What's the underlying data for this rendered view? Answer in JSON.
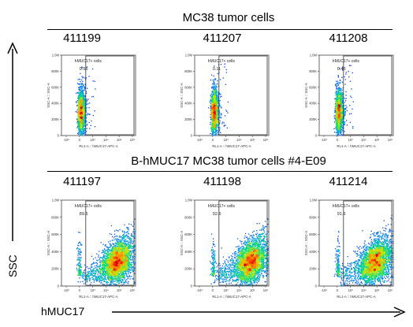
{
  "figure": {
    "y_axis_label": "SSC",
    "x_axis_label": "hMUC17"
  },
  "groups": [
    {
      "title": "MC38 tumor cells",
      "samples": [
        "411199",
        "411207",
        "411208"
      ]
    },
    {
      "title": "B-hMUC17 MC38 tumor cells #4-E09",
      "samples": [
        "411197",
        "411198",
        "411214"
      ]
    }
  ],
  "chart_data": [
    {
      "type": "scatter",
      "title": "411199",
      "group": "MC38 tumor cells",
      "xlabel": "RL1-A :: hMUC17-APC-A",
      "ylabel": "SSC-A :: SSC-A",
      "gate_label": "hMUC17+ cells",
      "gate_value": "0.56",
      "ylim": [
        0,
        1000000
      ],
      "yticks": [
        "0",
        "200K",
        "400K",
        "600K",
        "800K",
        "1.0M"
      ],
      "x_scale": "biexponential",
      "xticks": [
        "-10³",
        "0",
        "10³",
        "10⁴",
        "10⁵",
        "10⁶"
      ],
      "population": "negative",
      "color_scale": "density (blue-green-yellow-red)"
    },
    {
      "type": "scatter",
      "title": "411207",
      "group": "MC38 tumor cells",
      "xlabel": "RL1-A :: hMUC17-APC-A",
      "ylabel": "SSC-A :: SSC-A",
      "gate_label": "hMUC17+ cells",
      "gate_value": "0.11",
      "ylim": [
        0,
        1000000
      ],
      "yticks": [
        "0",
        "200K",
        "400K",
        "600K",
        "800K",
        "1.0M"
      ],
      "x_scale": "biexponential",
      "xticks": [
        "-10³",
        "0",
        "10³",
        "10⁴",
        "10⁵",
        "10⁶"
      ],
      "population": "negative",
      "color_scale": "density (blue-green-yellow-red)"
    },
    {
      "type": "scatter",
      "title": "411208",
      "group": "MC38 tumor cells",
      "xlabel": "RL1-A :: hMUC17-APC-A",
      "ylabel": "SSC-A :: SSC-A",
      "gate_label": "hMUC17+ cells",
      "gate_value": "0.43",
      "ylim": [
        0,
        1000000
      ],
      "yticks": [
        "0",
        "200K",
        "400K",
        "600K",
        "800K",
        "1.0M"
      ],
      "x_scale": "biexponential",
      "xticks": [
        "-10³",
        "0",
        "10³",
        "10⁴",
        "10⁵",
        "10⁶"
      ],
      "population": "negative",
      "color_scale": "density (blue-green-yellow-red)"
    },
    {
      "type": "scatter",
      "title": "411197",
      "group": "B-hMUC17 MC38 tumor cells #4-E09",
      "xlabel": "RL1-A :: hMUC17-APC-A",
      "ylabel": "SSC-A :: SSC-A",
      "gate_label": "hMUC17+ cells",
      "gate_value": "89.6",
      "ylim": [
        0,
        1000000
      ],
      "yticks": [
        "0",
        "200K",
        "400K",
        "600K",
        "800K",
        "1.0M"
      ],
      "x_scale": "biexponential",
      "xticks": [
        "-10³",
        "0",
        "10³",
        "10⁴",
        "10⁵",
        "10⁶"
      ],
      "population": "positive",
      "color_scale": "density (blue-green-yellow-red)"
    },
    {
      "type": "scatter",
      "title": "411198",
      "group": "B-hMUC17 MC38 tumor cells #4-E09",
      "xlabel": "RL1-A :: hMUC17-APC-A",
      "ylabel": "SSC-A :: SSC-A",
      "gate_label": "hMUC17+ cells",
      "gate_value": "92.6",
      "ylim": [
        0,
        1000000
      ],
      "yticks": [
        "0",
        "200K",
        "400K",
        "600K",
        "800K",
        "1.0M"
      ],
      "x_scale": "biexponential",
      "xticks": [
        "-10³",
        "0",
        "10³",
        "10⁴",
        "10⁵",
        "10⁶"
      ],
      "population": "positive",
      "color_scale": "density (blue-green-yellow-red)"
    },
    {
      "type": "scatter",
      "title": "411214",
      "group": "B-hMUC17 MC38 tumor cells #4-E09",
      "xlabel": "RL1-A :: hMUC17-APC-A",
      "ylabel": "SSC-A :: SSC-A",
      "gate_label": "hMUC17+ cells",
      "gate_value": "91.6",
      "ylim": [
        0,
        1000000
      ],
      "yticks": [
        "0",
        "200K",
        "400K",
        "600K",
        "800K",
        "1.0M"
      ],
      "x_scale": "biexponential",
      "xticks": [
        "-10³",
        "0",
        "10³",
        "10⁴",
        "10⁵",
        "10⁶"
      ],
      "population": "positive",
      "color_scale": "density (blue-green-yellow-red)"
    }
  ]
}
